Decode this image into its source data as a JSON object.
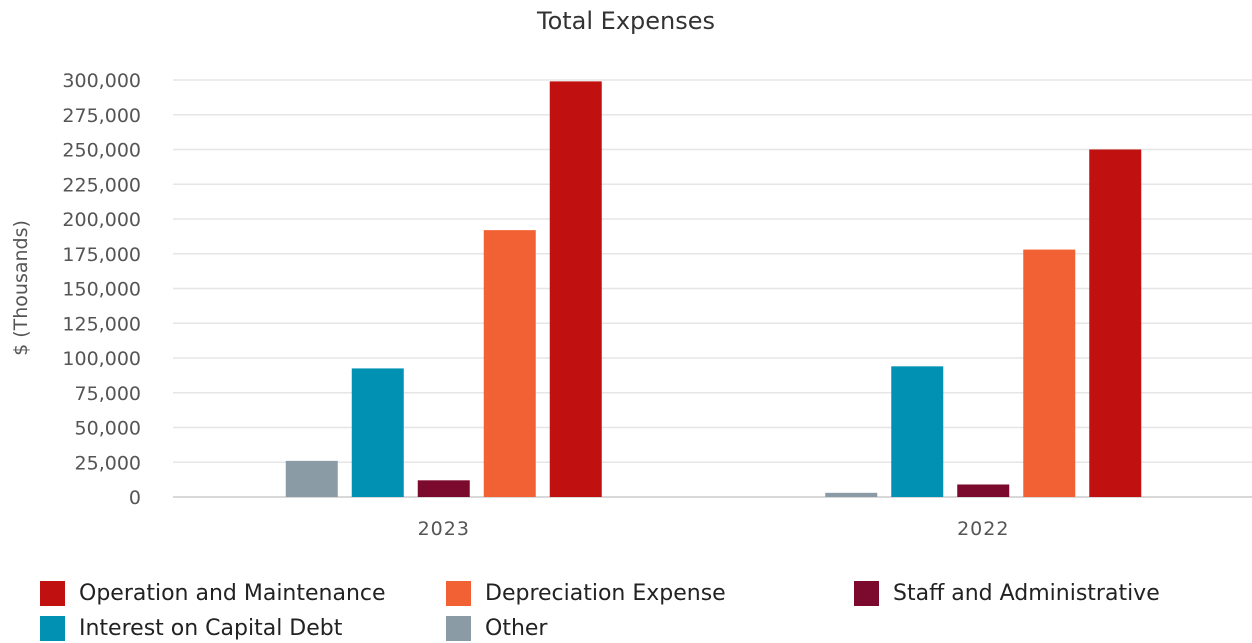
{
  "chart_data": {
    "type": "bar",
    "title": "Total Expenses",
    "ylabel": "$ (Thousands)",
    "xlabel": "",
    "ylim": [
      0,
      300000
    ],
    "yticks": [
      0,
      25000,
      50000,
      75000,
      100000,
      125000,
      150000,
      175000,
      200000,
      225000,
      250000,
      275000,
      300000
    ],
    "ytick_labels": [
      "0",
      "25,000",
      "50,000",
      "75,000",
      "100,000",
      "125,000",
      "150,000",
      "175,000",
      "200,000",
      "225,000",
      "250,000",
      "275,000",
      "300,000"
    ],
    "categories": [
      "2023",
      "2022"
    ],
    "grid": true,
    "legend_position": "bottom",
    "series": [
      {
        "name": "Other",
        "color": "#8a9ba5",
        "values": [
          26000,
          3000
        ]
      },
      {
        "name": "Interest on Capital Debt",
        "color": "#0091b3",
        "values": [
          92500,
          94000
        ]
      },
      {
        "name": "Staff and Administrative",
        "color": "#7b0a2e",
        "values": [
          12000,
          9000
        ]
      },
      {
        "name": "Depreciation Expense",
        "color": "#f26133",
        "values": [
          192000,
          178000
        ]
      },
      {
        "name": "Operation and Maintenance",
        "color": "#c0100f",
        "values": [
          299000,
          250000
        ]
      }
    ],
    "legend_order": [
      "Operation and Maintenance",
      "Depreciation Expense",
      "Staff and Administrative",
      "Interest on Capital Debt",
      "Other"
    ]
  }
}
